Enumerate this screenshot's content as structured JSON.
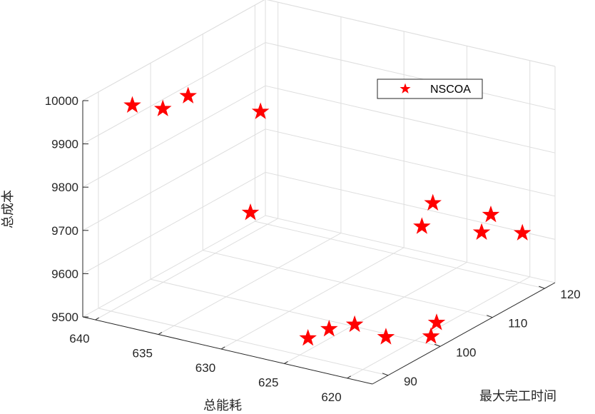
{
  "chart_data": {
    "type": "scatter",
    "subtype": "3d",
    "title": "",
    "xlabel": "最大完工时间",
    "ylabel": "总能耗",
    "zlabel": "总成本",
    "xlim": [
      87,
      122
    ],
    "ylim": [
      618,
      641
    ],
    "zlim": [
      9500,
      10000
    ],
    "xticks": [
      90,
      100,
      110,
      120
    ],
    "yticks": [
      620,
      625,
      630,
      635,
      640
    ],
    "zticks": [
      9500,
      9600,
      9700,
      9800,
      9900,
      10000
    ],
    "grid": true,
    "box": true,
    "legend": {
      "position": "top-right",
      "entries": [
        "NSCOA"
      ]
    },
    "series": [
      {
        "name": "NSCOA",
        "marker": "pentagram",
        "color": "#ff0000",
        "points": [
          {
            "x": 89.5,
            "y": 638.1,
            "z": 9992
          },
          {
            "x": 91.0,
            "y": 636.3,
            "z": 9986
          },
          {
            "x": 94.4,
            "y": 635.7,
            "z": 9997
          },
          {
            "x": 99.1,
            "y": 631.9,
            "z": 9955
          },
          {
            "x": 95.0,
            "y": 631.0,
            "z": 9755
          },
          {
            "x": 94.2,
            "y": 626.1,
            "z": 9503
          },
          {
            "x": 96.8,
            "y": 625.5,
            "z": 9511
          },
          {
            "x": 98.8,
            "y": 624.3,
            "z": 9516
          },
          {
            "x": 99.0,
            "y": 621.9,
            "z": 9502
          },
          {
            "x": 107.1,
            "y": 622.4,
            "z": 9700
          },
          {
            "x": 109.2,
            "y": 622.4,
            "z": 9740
          },
          {
            "x": 101.6,
            "y": 619.4,
            "z": 9503
          },
          {
            "x": 102.2,
            "y": 619.2,
            "z": 9532
          },
          {
            "x": 114.2,
            "y": 620.6,
            "z": 9651
          },
          {
            "x": 115.0,
            "y": 620.2,
            "z": 9689
          },
          {
            "x": 119.6,
            "y": 619.6,
            "z": 9620
          }
        ]
      }
    ]
  }
}
